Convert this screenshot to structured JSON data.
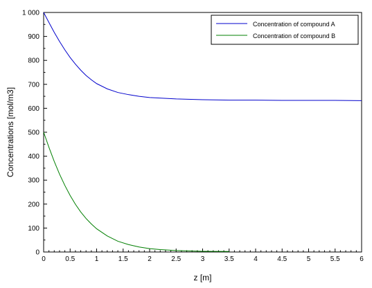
{
  "chart_data": {
    "type": "line",
    "title": "",
    "xlabel": "z [m]",
    "ylabel": "Concentrations [mol/m3]",
    "xlim": [
      0,
      6
    ],
    "ylim": [
      0,
      1000
    ],
    "x_ticks": [
      "0",
      "0.5",
      "1",
      "1.5",
      "2",
      "2.5",
      "3",
      "3.5",
      "4",
      "4.5",
      "5",
      "5.5",
      "6"
    ],
    "y_ticks": [
      "0",
      "100",
      "200",
      "300",
      "400",
      "500",
      "600",
      "700",
      "800",
      "900",
      "1 000"
    ],
    "grid": false,
    "legend_position": "top-right",
    "series": [
      {
        "name": "Concentration of compound A",
        "color": "#0000cc",
        "x": [
          0,
          0.1,
          0.2,
          0.3,
          0.4,
          0.5,
          0.6,
          0.7,
          0.8,
          0.9,
          1.0,
          1.2,
          1.4,
          1.6,
          1.8,
          2.0,
          2.5,
          3.0,
          3.5,
          4.0,
          4.5,
          5.0,
          5.5,
          6.0
        ],
        "y": [
          1000,
          958,
          917,
          879,
          844,
          812,
          784,
          759,
          737,
          719,
          703,
          681,
          666,
          657,
          650,
          645,
          639,
          636,
          634,
          634,
          633,
          633,
          633,
          632
        ]
      },
      {
        "name": "Concentration of compound B",
        "color": "#007f00",
        "x": [
          0,
          0.1,
          0.2,
          0.3,
          0.4,
          0.5,
          0.6,
          0.7,
          0.8,
          0.9,
          1.0,
          1.2,
          1.4,
          1.6,
          1.8,
          2.0,
          2.2,
          2.5,
          3.0,
          3.5
        ],
        "y": [
          500,
          437,
          378,
          325,
          278,
          236,
          199,
          167,
          140,
          117,
          97,
          67,
          45,
          31,
          21,
          14,
          10,
          6,
          3,
          2
        ]
      }
    ]
  }
}
